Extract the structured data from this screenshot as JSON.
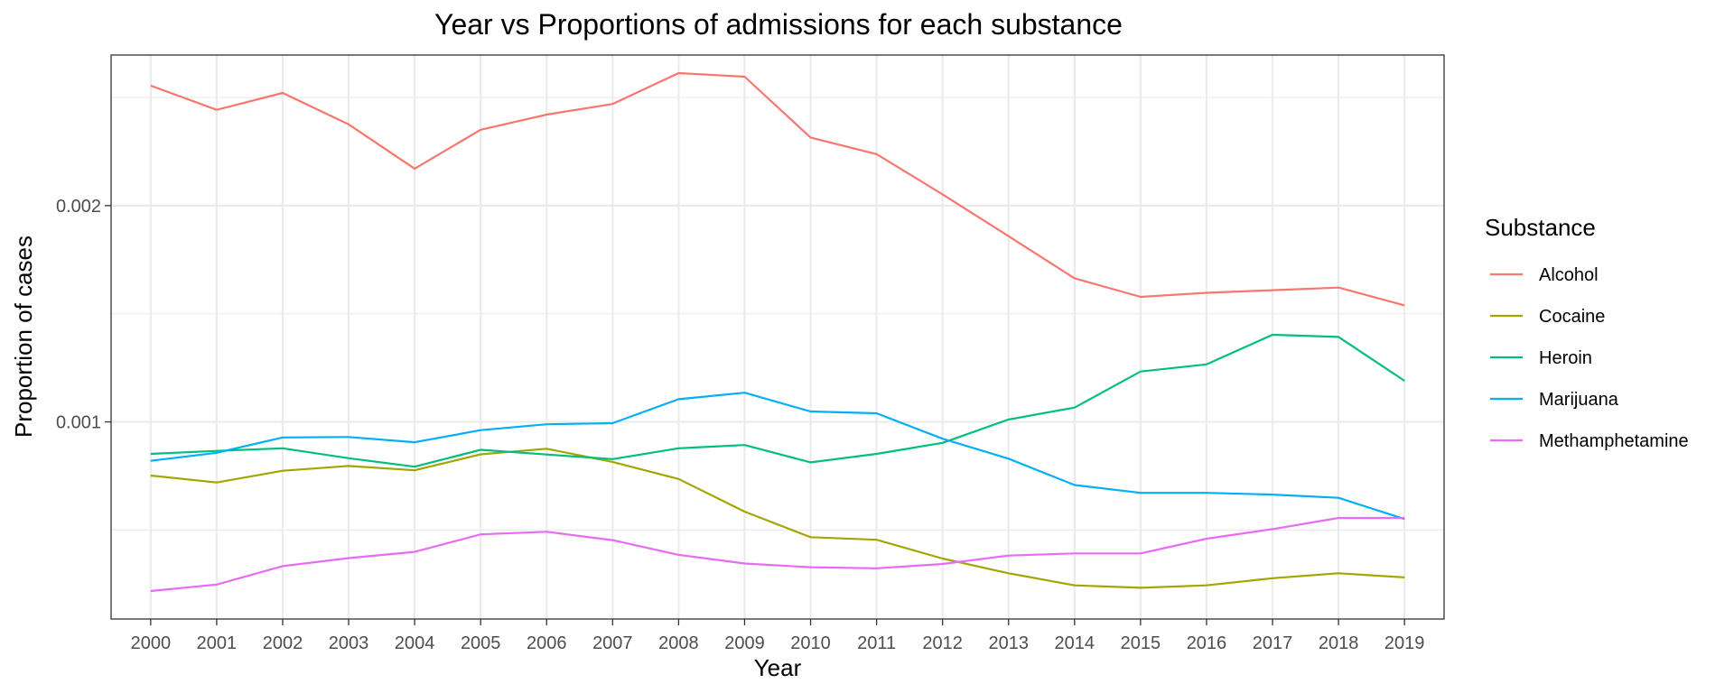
{
  "chart_data": {
    "type": "line",
    "title": "Year vs Proportions of admissions for each substance",
    "xlabel": "Year",
    "ylabel": "Proportion of cases",
    "x": [
      2000,
      2001,
      2002,
      2003,
      2004,
      2005,
      2006,
      2007,
      2008,
      2009,
      2010,
      2011,
      2012,
      2013,
      2014,
      2015,
      2016,
      2017,
      2018,
      2019
    ],
    "x_tick_labels": [
      "2000",
      "2001",
      "2002",
      "2003",
      "2004",
      "2005",
      "2006",
      "2007",
      "2008",
      "2009",
      "2010",
      "2011",
      "2012",
      "2013",
      "2014",
      "2015",
      "2016",
      "2017",
      "2018",
      "2019"
    ],
    "y_ticks": [
      0.001,
      0.002
    ],
    "y_tick_labels": [
      "0.001",
      "0.002"
    ],
    "y_minor_ticks": [
      0.0005,
      0.0015,
      0.0025
    ],
    "xlim": [
      1999.4,
      2019.6
    ],
    "ylim": [
      8.85e-05,
      0.0026963
    ],
    "grid": true,
    "legend": {
      "title": "Substance",
      "position": "right"
    },
    "series": [
      {
        "name": "Alcohol",
        "color": "#F8766D",
        "values": [
          0.002555,
          0.002443,
          0.002521,
          0.002376,
          0.002171,
          0.002351,
          0.002421,
          0.00247,
          0.002613,
          0.002596,
          0.002315,
          0.002238,
          0.002052,
          0.001859,
          0.001664,
          0.001578,
          0.001597,
          0.001609,
          0.001621,
          0.001539
        ]
      },
      {
        "name": "Cocaine",
        "color": "#A3A500",
        "values": [
          0.000752,
          0.00072,
          0.000774,
          0.000796,
          0.000776,
          0.00085,
          0.000876,
          0.000815,
          0.000736,
          0.000585,
          0.000467,
          0.000455,
          0.000368,
          0.0003,
          0.000244,
          0.000233,
          0.000244,
          0.000277,
          0.0003,
          0.000281
        ]
      },
      {
        "name": "Heroin",
        "color": "#00BF7D",
        "values": [
          0.000852,
          0.000866,
          0.000878,
          0.000832,
          0.000793,
          0.000871,
          0.000849,
          0.000828,
          0.000878,
          0.000893,
          0.000813,
          0.000852,
          0.000903,
          0.001011,
          0.001066,
          0.001233,
          0.001266,
          0.001403,
          0.001393,
          0.00119
        ]
      },
      {
        "name": "Marijuana",
        "color": "#00B0F6",
        "values": [
          0.00082,
          0.000857,
          0.000928,
          0.00093,
          0.000906,
          0.000962,
          0.000989,
          0.000994,
          0.001105,
          0.001135,
          0.001048,
          0.00104,
          0.000922,
          0.00083,
          0.000708,
          0.000672,
          0.000672,
          0.000664,
          0.000649,
          0.000551
        ]
      },
      {
        "name": "Methamphetamine",
        "color": "#E76BF3",
        "values": [
          0.000218,
          0.000248,
          0.000333,
          0.00037,
          0.000399,
          0.00048,
          0.000492,
          0.000453,
          0.000385,
          0.000345,
          0.000328,
          0.000323,
          0.000343,
          0.000382,
          0.000392,
          0.000392,
          0.00046,
          0.000504,
          0.000556,
          0.000556
        ]
      }
    ]
  }
}
